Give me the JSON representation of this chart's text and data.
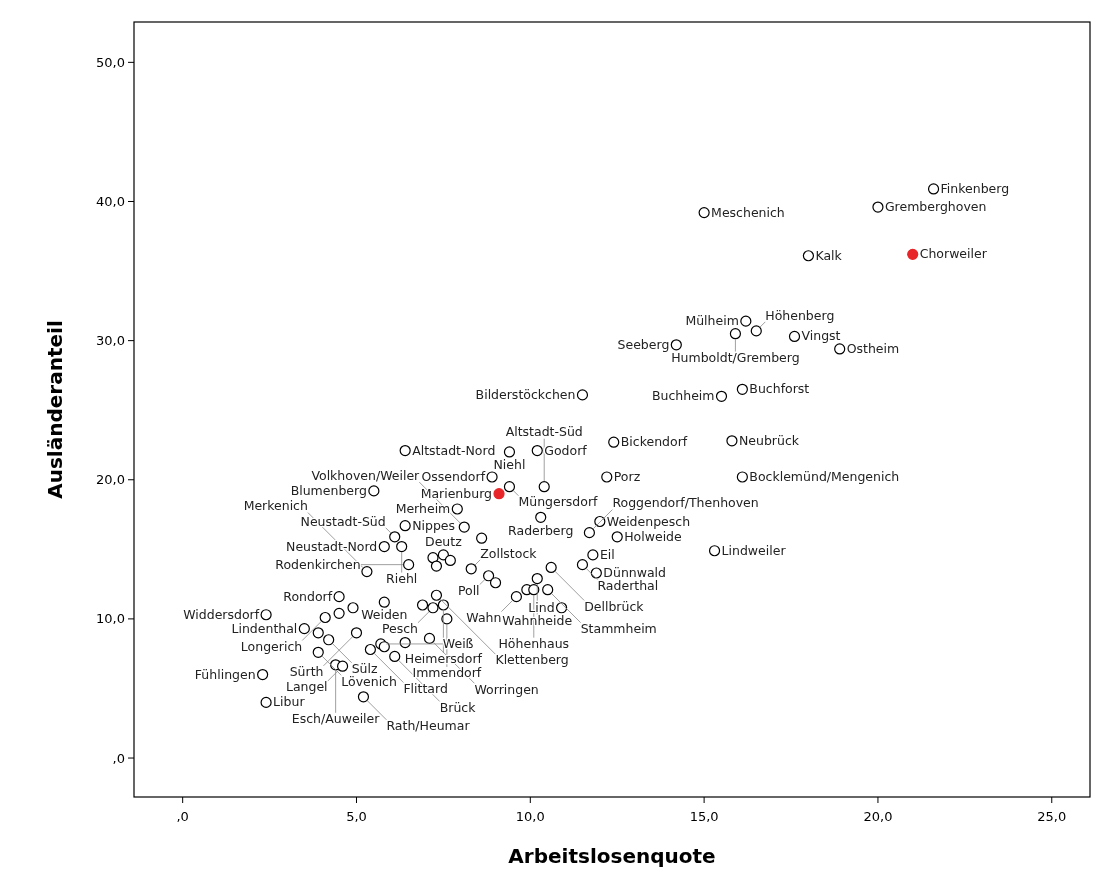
{
  "chart_data": {
    "type": "scatter",
    "xlabel": "Arbeitslosenquote",
    "ylabel": "Ausländeranteil",
    "xlim": [
      -1.4,
      26.1
    ],
    "ylim": [
      -2.8,
      52.9
    ],
    "xticks": [
      {
        "value": 0,
        "label": ",0"
      },
      {
        "value": 5,
        "label": "5,0"
      },
      {
        "value": 10,
        "label": "10,0"
      },
      {
        "value": 15,
        "label": "15,0"
      },
      {
        "value": 20,
        "label": "20,0"
      },
      {
        "value": 25,
        "label": "25,0"
      }
    ],
    "yticks": [
      {
        "value": 0,
        "label": ",0"
      },
      {
        "value": 10,
        "label": "10,0"
      },
      {
        "value": 20,
        "label": "20,0"
      },
      {
        "value": 30,
        "label": "30,0"
      },
      {
        "value": 40,
        "label": "40,0"
      },
      {
        "value": 50,
        "label": "50,0"
      }
    ],
    "grid": false,
    "marker": "circle",
    "series": [
      {
        "color": "#000000",
        "x": [
          15.0,
          20.0,
          21.6,
          18.0,
          16.2,
          15.9,
          16.5,
          14.2,
          17.6,
          18.9,
          15.5,
          16.1,
          11.5,
          6.4,
          9.4,
          10.2,
          12.4,
          15.8,
          8.9,
          9.4,
          10.4,
          12.2,
          16.1,
          5.5,
          7.9,
          10.3,
          6.4,
          6.1,
          5.8,
          6.3,
          8.1,
          8.6,
          12.0,
          11.7,
          12.5,
          15.3,
          6.5,
          5.3,
          7.2,
          7.5,
          7.7,
          7.3,
          8.3,
          8.8,
          9.0,
          11.8,
          11.5,
          11.9,
          10.6,
          10.2,
          9.9,
          10.1,
          10.5,
          9.6,
          10.9,
          4.5,
          5.8,
          4.9,
          4.5,
          4.1,
          2.4,
          7.3,
          6.9,
          7.2,
          7.5,
          7.6,
          3.5,
          3.9,
          4.2,
          5.0,
          3.9,
          4.4,
          4.6,
          5.4,
          5.7,
          5.8,
          6.1,
          6.4,
          7.1,
          2.3,
          2.4,
          5.2
        ],
        "values": [
          39.2,
          39.6,
          40.9,
          36.1,
          31.4,
          30.5,
          30.7,
          29.7,
          30.3,
          29.4,
          26.0,
          26.5,
          26.1,
          22.1,
          22.0,
          22.1,
          22.7,
          22.8,
          20.2,
          19.5,
          19.5,
          20.2,
          20.2,
          19.2,
          17.9,
          17.3,
          16.7,
          15.9,
          15.2,
          15.2,
          16.6,
          15.8,
          17.0,
          16.2,
          15.9,
          14.9,
          13.9,
          13.4,
          14.4,
          14.6,
          14.2,
          13.8,
          13.6,
          13.1,
          12.6,
          14.6,
          13.9,
          13.3,
          13.7,
          12.9,
          12.1,
          12.1,
          12.1,
          11.6,
          10.8,
          11.6,
          11.2,
          10.8,
          10.4,
          10.1,
          10.3,
          11.7,
          11.0,
          10.8,
          11.0,
          10.0,
          9.3,
          9.0,
          8.5,
          9.0,
          7.6,
          6.7,
          6.6,
          7.8,
          8.2,
          8.0,
          7.3,
          8.3,
          8.6,
          6.0,
          4.0,
          4.4
        ]
      },
      {
        "color": "#e8262a",
        "x": [
          21.0,
          9.1
        ],
        "values": [
          36.2,
          19.0
        ]
      }
    ],
    "annotations": [
      {
        "text": "Meschenich",
        "x": 15.0,
        "y": 39.2
      },
      {
        "text": "Gremberghoven",
        "x": 20.0,
        "y": 39.6
      },
      {
        "text": "Finkenberg",
        "x": 21.6,
        "y": 40.9
      },
      {
        "text": "Kalk",
        "x": 18.0,
        "y": 36.1
      },
      {
        "text": "Chorweiler",
        "x": 21.0,
        "y": 36.2
      },
      {
        "text": "Mülheim",
        "x": 16.2,
        "y": 31.4
      },
      {
        "text": "Humboldt/Gremberg",
        "x": 15.9,
        "y": 30.5
      },
      {
        "text": "Höhenberg",
        "x": 16.5,
        "y": 30.7
      },
      {
        "text": "Seeberg",
        "x": 14.2,
        "y": 29.7
      },
      {
        "text": "Vingst",
        "x": 17.6,
        "y": 30.3
      },
      {
        "text": "Ostheim",
        "x": 18.9,
        "y": 29.4
      },
      {
        "text": "Buchheim",
        "x": 15.5,
        "y": 26.0
      },
      {
        "text": "Buchforst",
        "x": 16.1,
        "y": 26.5
      },
      {
        "text": "Bilderstöckchen",
        "x": 11.5,
        "y": 26.1
      },
      {
        "text": "Altstadt-Nord",
        "x": 6.4,
        "y": 22.1
      },
      {
        "text": "Niehl",
        "x": 9.4,
        "y": 22.0
      },
      {
        "text": "Godorf",
        "x": 10.2,
        "y": 22.1
      },
      {
        "text": "Bickendorf",
        "x": 12.4,
        "y": 22.7
      },
      {
        "text": "Neubrück",
        "x": 15.8,
        "y": 22.8
      },
      {
        "text": "Ossendorf",
        "x": 8.9,
        "y": 20.2
      },
      {
        "text": "Müngersdorf",
        "x": 9.4,
        "y": 19.5
      },
      {
        "text": "Altstadt-Süd",
        "x": 10.4,
        "y": 19.5
      },
      {
        "text": "Porz",
        "x": 12.2,
        "y": 20.2
      },
      {
        "text": "Bocklemünd/Mengenich",
        "x": 16.1,
        "y": 20.2
      },
      {
        "text": "Marienburg",
        "x": 9.1,
        "y": 19.0
      },
      {
        "text": "Blumenberg",
        "x": 5.5,
        "y": 19.2
      },
      {
        "text": "Merheim",
        "x": 7.9,
        "y": 17.9
      },
      {
        "text": "Raderberg",
        "x": 10.3,
        "y": 17.3
      },
      {
        "text": "Nippes",
        "x": 6.4,
        "y": 16.7
      },
      {
        "text": "Neustadt-Süd",
        "x": 6.1,
        "y": 15.9
      },
      {
        "text": "Neustadt-Nord",
        "x": 5.8,
        "y": 15.2
      },
      {
        "text": "Riehl",
        "x": 6.3,
        "y": 15.2
      },
      {
        "text": "Volkhoven/Weiler",
        "x": 8.1,
        "y": 16.6
      },
      {
        "text": "Weidenpesch",
        "x": 12.0,
        "y": 17.0
      },
      {
        "text": "Roggendorf/Thenhoven",
        "x": 11.7,
        "y": 16.2
      },
      {
        "text": "Holweide",
        "x": 12.5,
        "y": 15.9
      },
      {
        "text": "Lindweiler",
        "x": 15.3,
        "y": 14.9
      },
      {
        "text": "Rodenkirchen",
        "x": 6.5,
        "y": 13.9
      },
      {
        "text": "Merkenich",
        "x": 5.3,
        "y": 13.4
      },
      {
        "text": "Deutz",
        "x": 7.5,
        "y": 14.6
      },
      {
        "text": "Zollstock",
        "x": 8.3,
        "y": 13.6
      },
      {
        "text": "Poll",
        "x": 8.8,
        "y": 13.1
      },
      {
        "text": "Eil",
        "x": 11.8,
        "y": 14.6
      },
      {
        "text": "Raderthal",
        "x": 11.5,
        "y": 13.9
      },
      {
        "text": "Dünnwald",
        "x": 11.9,
        "y": 13.3
      },
      {
        "text": "Dellbrück",
        "x": 10.6,
        "y": 13.7
      },
      {
        "text": "Wahnheide",
        "x": 10.2,
        "y": 12.9
      },
      {
        "text": "Höhenhaus",
        "x": 10.1,
        "y": 12.1
      },
      {
        "text": "Stammheim",
        "x": 10.5,
        "y": 12.1
      },
      {
        "text": "Wahn",
        "x": 9.6,
        "y": 11.6
      },
      {
        "text": "Lind",
        "x": 10.9,
        "y": 10.8
      },
      {
        "text": "Rondorf",
        "x": 4.5,
        "y": 11.6
      },
      {
        "text": "Weiden",
        "x": 5.8,
        "y": 11.2
      },
      {
        "text": "Longerich",
        "x": 4.1,
        "y": 10.1
      },
      {
        "text": "Widdersdorf",
        "x": 2.4,
        "y": 10.3
      },
      {
        "text": "Klettenberg",
        "x": 7.3,
        "y": 11.7
      },
      {
        "text": "Pesch",
        "x": 7.2,
        "y": 10.8
      },
      {
        "text": "Heimersdorf",
        "x": 7.5,
        "y": 11.0
      },
      {
        "text": "Immendorf",
        "x": 7.6,
        "y": 10.0
      },
      {
        "text": "Lindenthal",
        "x": 3.5,
        "y": 9.3
      },
      {
        "text": "Sülz",
        "x": 4.2,
        "y": 8.5
      },
      {
        "text": "Sürth",
        "x": 5.0,
        "y": 9.0
      },
      {
        "text": "Lövenich",
        "x": 3.9,
        "y": 7.6
      },
      {
        "text": "Esch/Auweiler",
        "x": 4.4,
        "y": 6.7
      },
      {
        "text": "Langel",
        "x": 4.6,
        "y": 6.6
      },
      {
        "text": "Flittard",
        "x": 5.4,
        "y": 7.8
      },
      {
        "text": "Weiß",
        "x": 5.7,
        "y": 8.2
      },
      {
        "text": "Brück",
        "x": 6.1,
        "y": 7.3
      },
      {
        "text": "Worringen",
        "x": 7.1,
        "y": 8.6
      },
      {
        "text": "Fühlingen",
        "x": 2.3,
        "y": 6.0
      },
      {
        "text": "Libur",
        "x": 2.4,
        "y": 4.0
      },
      {
        "text": "Rath/Heumar",
        "x": 5.2,
        "y": 4.4
      }
    ]
  }
}
